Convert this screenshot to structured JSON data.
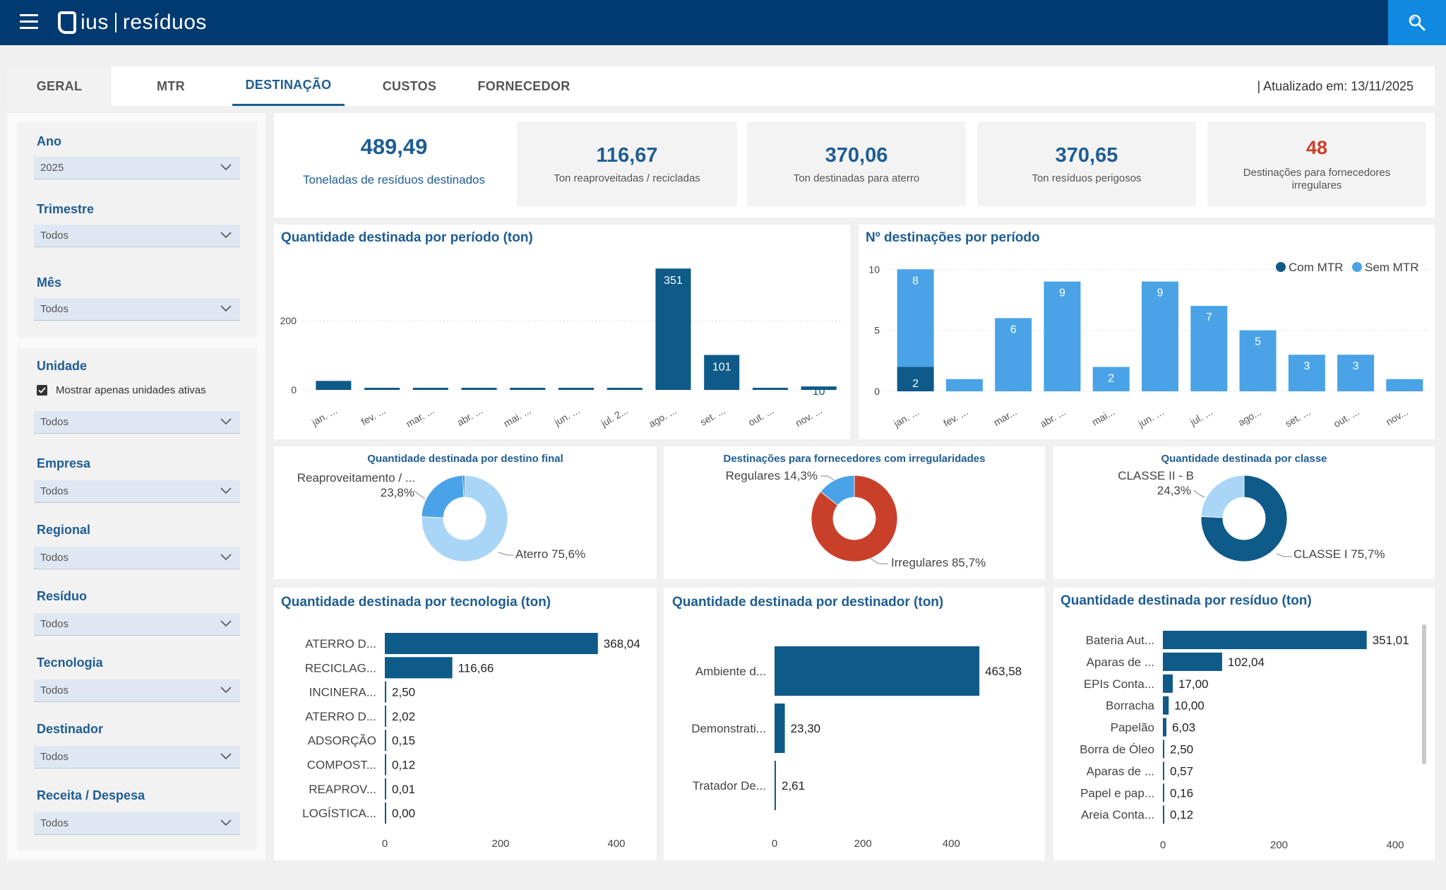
{
  "app": {
    "brand_left": "ius",
    "brand_right": "resíduos"
  },
  "tabs": [
    {
      "label": "GERAL"
    },
    {
      "label": "MTR"
    },
    {
      "label": "DESTINAÇÃO"
    },
    {
      "label": "CUSTOS"
    },
    {
      "label": "FORNECEDOR"
    }
  ],
  "active_tab": "DESTINAÇÃO",
  "updated_text": "| Atualizado em: 13/11/2025",
  "filters": {
    "ano": {
      "label": "Ano",
      "value": "2025"
    },
    "trimestre": {
      "label": "Trimestre",
      "value": "Todos"
    },
    "mes": {
      "label": "Mês",
      "value": "Todos"
    },
    "unidade": {
      "label": "Unidade",
      "checkbox_label": "Mostrar apenas unidades ativas",
      "checked": true,
      "value": "Todos"
    },
    "empresa": {
      "label": "Empresa",
      "value": "Todos"
    },
    "regional": {
      "label": "Regional",
      "value": "Todos"
    },
    "residuo": {
      "label": "Resíduo",
      "value": "Todos"
    },
    "tecnologia": {
      "label": "Tecnologia",
      "value": "Todos"
    },
    "destinador": {
      "label": "Destinador",
      "value": "Todos"
    },
    "receita": {
      "label": "Receita / Despesa",
      "value": "Todos"
    }
  },
  "kpis": {
    "total": {
      "value": "489,49",
      "label": "Toneladas de resíduos destinados"
    },
    "reaproveitadas": {
      "value": "116,67",
      "label": "Ton reaproveitadas / recicladas"
    },
    "aterro": {
      "value": "370,06",
      "label": "Ton destinadas para aterro"
    },
    "perigosos": {
      "value": "370,65",
      "label": "Ton resíduos perigosos"
    },
    "irregulares": {
      "value": "48",
      "label": "Destinações para fornecedores irregulares"
    }
  },
  "colors": {
    "navy": "#003a70",
    "dark_bar": "#0e5a88",
    "light_bar": "#4aa3e6",
    "pale": "#a9d6f7",
    "title": "#1e5d93",
    "alert": "#c9402a",
    "search": "#0f8ae0"
  },
  "chart_data": [
    {
      "id": "qtd-periodo",
      "type": "bar",
      "title": "Quantidade destinada por período (ton)",
      "categories": [
        "jan. ...",
        "fev. ...",
        "mar. ...",
        "abr. ...",
        "mai. ...",
        "jun. ...",
        "jul. 2...",
        "ago. ...",
        "set. ...",
        "out. ...",
        "nov. ..."
      ],
      "values": [
        26,
        1,
        1,
        1,
        1,
        1,
        1,
        351,
        101,
        1,
        10
      ],
      "data_labels": [
        "26",
        "",
        "",
        "",
        "",
        "",
        "",
        "351",
        "101",
        "",
        "10"
      ],
      "yticks": [
        0,
        200
      ],
      "ylim": [
        0,
        380
      ],
      "grid": true
    },
    {
      "id": "n-destinacoes",
      "type": "bar",
      "title": "Nº destinações por período",
      "categories": [
        "jan. ...",
        "fev. ...",
        "mar...",
        "abr. ...",
        "mai...",
        "jun. ...",
        "jul. ...",
        "ago...",
        "set. ...",
        "out. ...",
        "nov..."
      ],
      "series": [
        {
          "name": "Com MTR",
          "values": [
            2,
            0,
            0,
            0,
            0,
            0,
            0,
            0,
            0,
            0,
            0
          ],
          "labels": [
            "2",
            "",
            "",
            "",
            "",
            "",
            "",
            "",
            "",
            "",
            ""
          ]
        },
        {
          "name": "Sem MTR",
          "values": [
            8,
            1,
            6,
            9,
            2,
            9,
            7,
            5,
            3,
            3,
            1
          ],
          "labels": [
            "8",
            "",
            "6",
            "9",
            "2",
            "9",
            "7",
            "5",
            "3",
            "3",
            ""
          ]
        }
      ],
      "yticks": [
        0,
        5,
        10
      ],
      "ylim": [
        0,
        11
      ],
      "legend": "top-right",
      "stacked": true
    },
    {
      "id": "destino-final",
      "type": "pie",
      "title": "Quantidade destinada por destino final",
      "slices": [
        {
          "label": "Aterro 75,6%",
          "value": 75.6
        },
        {
          "label": "Reaproveitamento / ...",
          "label2": "23,8%",
          "value": 23.8
        },
        {
          "label": "",
          "value": 0.6
        }
      ]
    },
    {
      "id": "fornecedores-irreg",
      "type": "pie",
      "title": "Destinações para fornecedores com irregularidades",
      "slices": [
        {
          "label": "Irregulares 85,7%",
          "value": 85.7
        },
        {
          "label": "Regulares 14,3%",
          "value": 14.3
        }
      ]
    },
    {
      "id": "por-classe",
      "type": "pie",
      "title": "Quantidade destinada por classe",
      "slices": [
        {
          "label": "CLASSE I 75,7%",
          "value": 75.7
        },
        {
          "label": "CLASSE II - B",
          "label2": "24,3%",
          "value": 24.3
        }
      ]
    },
    {
      "id": "por-tecnologia",
      "type": "bar",
      "orientation": "horizontal",
      "title": "Quantidade destinada por tecnologia (ton)",
      "categories": [
        "ATERRO D...",
        "RECICLAG...",
        "INCINERA...",
        "ATERRO D...",
        "ADSORÇÃO",
        "COMPOST...",
        "REAPROV...",
        "LOGÍSTICA..."
      ],
      "values": [
        368.04,
        116.66,
        2.5,
        2.02,
        0.15,
        0.12,
        0.01,
        0.0
      ],
      "data_labels": [
        "368,04",
        "116,66",
        "2,50",
        "2,02",
        "0,15",
        "0,12",
        "0,01",
        "0,00"
      ],
      "xticks": [
        0,
        200,
        400
      ],
      "xlim": [
        0,
        400
      ]
    },
    {
      "id": "por-destinador",
      "type": "bar",
      "orientation": "horizontal",
      "title": "Quantidade destinada por destinador (ton)",
      "categories": [
        "Ambiente d...",
        "Demonstrati...",
        "Tratador De..."
      ],
      "values": [
        463.58,
        23.3,
        2.61
      ],
      "data_labels": [
        "463,58",
        "23,30",
        "2,61"
      ],
      "xticks": [
        0,
        200,
        400
      ],
      "xlim": [
        0,
        465
      ]
    },
    {
      "id": "por-residuo",
      "type": "bar",
      "orientation": "horizontal",
      "title": "Quantidade destinada por resíduo (ton)",
      "categories": [
        "Bateria Aut...",
        "Aparas de ...",
        "EPIs Conta...",
        "Borracha",
        "Papelão",
        "Borra de Óleo",
        "Aparas de ...",
        "Papel e pap...",
        "Areia Conta..."
      ],
      "values": [
        351.01,
        102.04,
        17.0,
        10.0,
        6.03,
        2.5,
        0.57,
        0.16,
        0.12
      ],
      "data_labels": [
        "351,01",
        "102,04",
        "17,00",
        "10,00",
        "6,03",
        "2,50",
        "0,57",
        "0,16",
        "0,12"
      ],
      "xticks": [
        0,
        200,
        400
      ],
      "xlim": [
        0,
        400
      ]
    }
  ]
}
